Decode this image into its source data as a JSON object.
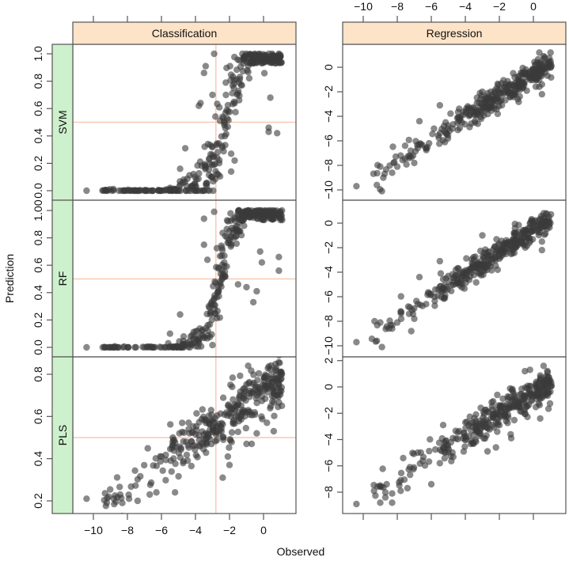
{
  "chart_data": {
    "type": "scatter",
    "layout": "trellis 3 rows x 2 columns",
    "xlabel": "Observed",
    "ylabel": "Prediction",
    "columns": [
      "Classification",
      "Regression"
    ],
    "rows": [
      "SVM",
      "RF",
      "PLS"
    ],
    "strip_colors": {
      "column_strip": "#fde3c8",
      "row_strip": "#cdf1cc"
    },
    "point_color": "#3a3a3a",
    "point_alpha": 0.6,
    "reference_line_color": "#f8c9b2",
    "x_axis": {
      "range": [
        -11.2,
        1.9
      ],
      "ticks": [
        -10,
        -8,
        -6,
        -4,
        -2,
        0
      ],
      "tick_labels": [
        "−10",
        "−8",
        "−6",
        "−4",
        "−2",
        "0"
      ],
      "top_labels_on": "Regression",
      "bottom_labels_on": "Classification"
    },
    "panels": [
      {
        "row": "SVM",
        "column": "Classification",
        "y_range": [
          -0.07,
          1.07
        ],
        "y_ticks": [
          0.0,
          0.2,
          0.4,
          0.6,
          0.8,
          1.0
        ],
        "y_tick_labels": [
          "0.0",
          "0.2",
          "0.4",
          "0.6",
          "0.8",
          "1.0"
        ],
        "reference_lines": {
          "vertical_x": -2.8,
          "horizontal_y": 0.5
        },
        "model": "sigmoid",
        "center": -2.3,
        "scale": 0.55,
        "noise": 0.12,
        "floor": 0.0,
        "ceiling": 1.0,
        "n_points": 330,
        "seed": 11,
        "anchor_points": [
          [
            -10.4,
            0.0
          ],
          [
            -8.9,
            0.0
          ],
          [
            -8.5,
            0.0
          ],
          [
            -8.0,
            0.0
          ],
          [
            -7.5,
            0.0
          ],
          [
            -7.0,
            0.0
          ],
          [
            -6.5,
            0.0
          ],
          [
            -6.0,
            0.0
          ],
          [
            -5.5,
            0.02
          ],
          [
            -4.9,
            0.16
          ],
          [
            -4.6,
            0.31
          ],
          [
            -3.8,
            0.62
          ],
          [
            -3.7,
            0.64
          ],
          [
            -3.5,
            0.86
          ],
          [
            -3.4,
            0.91
          ],
          [
            -3.0,
            0.7
          ],
          [
            -2.9,
            1.0
          ],
          [
            -1.9,
            0.27
          ],
          [
            -1.7,
            0.22
          ],
          [
            -1.9,
            0.14
          ],
          [
            0.3,
            0.46
          ],
          [
            0.3,
            0.43
          ],
          [
            0.4,
            0.68
          ],
          [
            1.0,
            0.94
          ],
          [
            0.8,
            0.42
          ],
          [
            1.0,
            0.99
          ]
        ]
      },
      {
        "row": "SVM",
        "column": "Regression",
        "y_range": [
          -11.2,
          1.9
        ],
        "y_ticks": [
          -10,
          -8,
          -6,
          -4,
          -2,
          0
        ],
        "y_tick_labels": [
          "−10",
          "−8",
          "−6",
          "−4",
          "−2",
          "0"
        ],
        "model": "linear",
        "slope": 0.9,
        "intercept": -0.5,
        "noise": 0.55,
        "n_points": 330,
        "seed": 21,
        "anchor_points": [
          [
            -10.4,
            -9.7
          ],
          [
            -9.2,
            -9.6
          ],
          [
            -9.0,
            -8.1
          ],
          [
            -8.9,
            -10.1
          ],
          [
            -8.3,
            -8.6
          ],
          [
            -8.0,
            -8.1
          ],
          [
            -7.8,
            -7.2
          ],
          [
            -7.3,
            -7.4
          ],
          [
            -7.0,
            -7.8
          ],
          [
            -6.8,
            -6.6
          ],
          [
            -6.7,
            -4.4
          ],
          [
            -6.3,
            -6.6
          ],
          [
            -5.2,
            -6.1
          ],
          [
            -5.5,
            -3.1
          ],
          [
            -3.0,
            -2.0
          ],
          [
            0.5,
            -1.4
          ],
          [
            0.5,
            -2.2
          ],
          [
            1.0,
            0.0
          ],
          [
            -1.2,
            -2.2
          ],
          [
            -2.1,
            -3.8
          ]
        ]
      },
      {
        "row": "RF",
        "column": "Classification",
        "y_range": [
          -0.07,
          1.07
        ],
        "y_ticks": [
          0.0,
          0.2,
          0.4,
          0.6,
          0.8,
          1.0
        ],
        "y_tick_labels": [
          "0.0",
          "0.2",
          "0.4",
          "0.6",
          "0.8",
          "1.00"
        ],
        "reference_lines": {
          "vertical_x": -2.8,
          "horizontal_y": 0.5
        },
        "model": "sigmoid",
        "center": -2.6,
        "scale": 0.45,
        "noise": 0.1,
        "floor": 0.0,
        "ceiling": 1.0,
        "n_points": 330,
        "seed": 31,
        "anchor_points": [
          [
            -10.4,
            0.0
          ],
          [
            -8.9,
            0.0
          ],
          [
            -8.5,
            0.0
          ],
          [
            -8.0,
            0.0
          ],
          [
            -7.5,
            0.0
          ],
          [
            -7.0,
            0.0
          ],
          [
            -6.5,
            0.0
          ],
          [
            -6.0,
            0.0
          ],
          [
            -5.6,
            0.03
          ],
          [
            -5.5,
            0.1
          ],
          [
            -4.9,
            0.24
          ],
          [
            -3.5,
            0.94
          ],
          [
            -3.5,
            0.75
          ],
          [
            -3.3,
            0.64
          ],
          [
            -2.9,
            0.99
          ],
          [
            -1.5,
            0.46
          ],
          [
            -1.0,
            0.44
          ],
          [
            -0.6,
            0.33
          ],
          [
            -0.4,
            0.41
          ],
          [
            -0.2,
            0.7
          ],
          [
            -0.1,
            0.62
          ],
          [
            0.9,
            0.66
          ],
          [
            0.9,
            0.56
          ],
          [
            1.0,
            0.93
          ]
        ]
      },
      {
        "row": "RF",
        "column": "Regression",
        "y_range": [
          -11.2,
          1.9
        ],
        "y_ticks": [
          -10,
          -8,
          -6,
          -4,
          -2,
          0
        ],
        "y_tick_labels": [
          "−10",
          "−8",
          "−6",
          "−4",
          "−2",
          "0"
        ],
        "model": "linear",
        "slope": 0.9,
        "intercept": -0.5,
        "noise": 0.55,
        "n_points": 330,
        "seed": 41,
        "anchor_points": [
          [
            -10.4,
            -9.7
          ],
          [
            -9.2,
            -9.6
          ],
          [
            -9.0,
            -8.1
          ],
          [
            -8.9,
            -10.1
          ],
          [
            -8.3,
            -8.6
          ],
          [
            -8.0,
            -8.1
          ],
          [
            -7.8,
            -7.2
          ],
          [
            -7.3,
            -7.4
          ],
          [
            -7.0,
            -7.8
          ],
          [
            -6.8,
            -6.6
          ],
          [
            -6.7,
            -4.4
          ],
          [
            -6.3,
            -6.6
          ],
          [
            -5.2,
            -6.1
          ],
          [
            -5.5,
            -3.1
          ],
          [
            -3.0,
            -1.0
          ],
          [
            0.5,
            -1.5
          ],
          [
            0.5,
            -2.2
          ],
          [
            1.0,
            0.0
          ],
          [
            -1.2,
            -2.2
          ],
          [
            -2.1,
            -3.8
          ]
        ]
      },
      {
        "row": "PLS",
        "column": "Classification",
        "y_range": [
          0.14,
          0.87
        ],
        "y_ticks": [
          0.2,
          0.4,
          0.6,
          0.8
        ],
        "y_tick_labels": [
          "0.2",
          "0.4",
          "0.6",
          "0.8"
        ],
        "reference_lines": {
          "vertical_x": -2.8,
          "horizontal_y": 0.5
        },
        "model": "linear",
        "slope": 0.056,
        "intercept": 0.71,
        "noise": 0.06,
        "n_points": 330,
        "seed": 51,
        "anchor_points": [
          [
            -10.4,
            0.21
          ],
          [
            -9.1,
            0.22
          ],
          [
            -8.8,
            0.21
          ],
          [
            -8.3,
            0.19
          ],
          [
            -7.9,
            0.21
          ],
          [
            -7.4,
            0.2
          ],
          [
            -6.3,
            0.24
          ],
          [
            -5.2,
            0.24
          ],
          [
            -5.3,
            0.49
          ],
          [
            -4.4,
            0.57
          ],
          [
            -4.4,
            0.54
          ],
          [
            -2.4,
            0.31
          ],
          [
            -2.1,
            0.41
          ],
          [
            -2.0,
            0.37
          ],
          [
            -0.9,
            0.84
          ],
          [
            -0.7,
            0.47
          ],
          [
            -0.4,
            0.52
          ],
          [
            0.2,
            0.57
          ],
          [
            0.6,
            0.53
          ],
          [
            0.8,
            0.7
          ],
          [
            1.0,
            0.81
          ],
          [
            -1.0,
            0.47
          ]
        ]
      },
      {
        "row": "PLS",
        "column": "Regression",
        "y_range": [
          -9.6,
          2.4
        ],
        "y_ticks": [
          -8,
          -6,
          -4,
          -2,
          0,
          2
        ],
        "y_tick_labels": [
          "−8",
          "−6",
          "−4",
          "−2",
          "0",
          "2"
        ],
        "model": "linear",
        "slope": 0.8,
        "intercept": -0.5,
        "noise": 0.6,
        "n_points": 330,
        "seed": 61,
        "anchor_points": [
          [
            -10.4,
            -8.9
          ],
          [
            -9.0,
            -8.8
          ],
          [
            -9.0,
            -7.5
          ],
          [
            -8.7,
            -8.4
          ],
          [
            -8.3,
            -8.1
          ],
          [
            -8.3,
            -8.8
          ],
          [
            -7.8,
            -7.1
          ],
          [
            -7.8,
            -7.9
          ],
          [
            -7.4,
            -7.7
          ],
          [
            -6.8,
            -5.0
          ],
          [
            -6.0,
            -7.4
          ],
          [
            -5.5,
            -5.8
          ],
          [
            -5.3,
            -2.9
          ],
          [
            -1.3,
            -3.9
          ],
          [
            -2.2,
            -4.6
          ],
          [
            -2.7,
            -4.9
          ],
          [
            0.4,
            -2.4
          ],
          [
            0.6,
            1.6
          ],
          [
            -0.2,
            1.3
          ],
          [
            -0.5,
            1.2
          ]
        ]
      }
    ]
  }
}
